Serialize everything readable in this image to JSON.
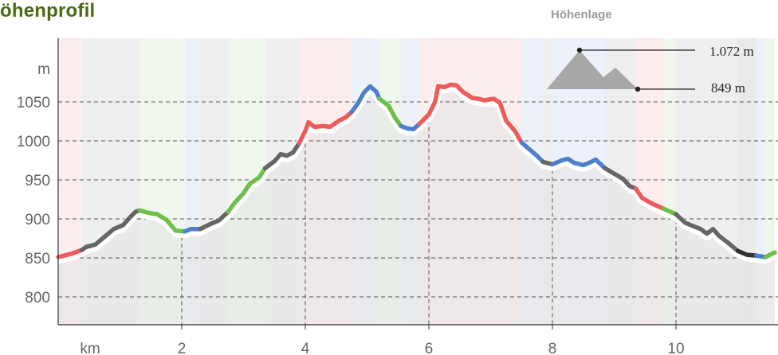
{
  "title": "öhenprofil",
  "legend": {
    "title": "Höhenlage",
    "max_label": "1.072 m",
    "min_label": "849 m",
    "icon": "mountain-icon"
  },
  "chart_data": {
    "type": "area",
    "xlabel": "km",
    "ylabel": "m",
    "x_unit": "km",
    "y_unit": "m",
    "xlim": [
      0,
      11.6
    ],
    "ylim": [
      770,
      1105
    ],
    "yticks": [
      800,
      850,
      900,
      950,
      1000,
      1050
    ],
    "xticks": [
      2,
      4,
      6,
      8,
      10
    ],
    "grid": "horizontal-dashed",
    "max_elevation": 1072,
    "min_elevation": 849,
    "points": [
      [
        0.0,
        851
      ],
      [
        0.2,
        855
      ],
      [
        0.38,
        860
      ],
      [
        0.45,
        864
      ],
      [
        0.6,
        867
      ],
      [
        0.75,
        877
      ],
      [
        0.9,
        887
      ],
      [
        1.05,
        892
      ],
      [
        1.15,
        901
      ],
      [
        1.25,
        909
      ],
      [
        1.32,
        911
      ],
      [
        1.45,
        908
      ],
      [
        1.6,
        906
      ],
      [
        1.75,
        899
      ],
      [
        1.9,
        885
      ],
      [
        2.05,
        884
      ],
      [
        2.15,
        887
      ],
      [
        2.3,
        887
      ],
      [
        2.45,
        893
      ],
      [
        2.6,
        898
      ],
      [
        2.75,
        909
      ],
      [
        2.85,
        920
      ],
      [
        3.0,
        933
      ],
      [
        3.1,
        945
      ],
      [
        3.25,
        953
      ],
      [
        3.35,
        965
      ],
      [
        3.5,
        974
      ],
      [
        3.6,
        983
      ],
      [
        3.7,
        981
      ],
      [
        3.8,
        985
      ],
      [
        3.9,
        997
      ],
      [
        4.0,
        1013
      ],
      [
        4.05,
        1024
      ],
      [
        4.15,
        1018
      ],
      [
        4.3,
        1019
      ],
      [
        4.4,
        1018
      ],
      [
        4.55,
        1026
      ],
      [
        4.65,
        1030
      ],
      [
        4.75,
        1037
      ],
      [
        4.85,
        1048
      ],
      [
        4.95,
        1062
      ],
      [
        5.05,
        1070
      ],
      [
        5.15,
        1063
      ],
      [
        5.2,
        1054
      ],
      [
        5.35,
        1045
      ],
      [
        5.45,
        1030
      ],
      [
        5.55,
        1019
      ],
      [
        5.65,
        1016
      ],
      [
        5.75,
        1015
      ],
      [
        5.85,
        1022
      ],
      [
        6.0,
        1034
      ],
      [
        6.1,
        1050
      ],
      [
        6.15,
        1070
      ],
      [
        6.25,
        1069
      ],
      [
        6.35,
        1072
      ],
      [
        6.45,
        1071
      ],
      [
        6.55,
        1063
      ],
      [
        6.7,
        1055
      ],
      [
        6.8,
        1054
      ],
      [
        6.9,
        1052
      ],
      [
        7.05,
        1054
      ],
      [
        7.15,
        1049
      ],
      [
        7.25,
        1026
      ],
      [
        7.4,
        1012
      ],
      [
        7.5,
        998
      ],
      [
        7.6,
        991
      ],
      [
        7.75,
        981
      ],
      [
        7.85,
        973
      ],
      [
        8.0,
        970
      ],
      [
        8.15,
        975
      ],
      [
        8.25,
        977
      ],
      [
        8.35,
        972
      ],
      [
        8.5,
        969
      ],
      [
        8.6,
        972
      ],
      [
        8.7,
        976
      ],
      [
        8.85,
        965
      ],
      [
        9.0,
        958
      ],
      [
        9.15,
        951
      ],
      [
        9.25,
        942
      ],
      [
        9.35,
        939
      ],
      [
        9.45,
        927
      ],
      [
        9.6,
        920
      ],
      [
        9.8,
        913
      ],
      [
        10.0,
        906
      ],
      [
        10.15,
        895
      ],
      [
        10.3,
        890
      ],
      [
        10.4,
        887
      ],
      [
        10.5,
        881
      ],
      [
        10.6,
        887
      ],
      [
        10.7,
        878
      ],
      [
        10.85,
        869
      ],
      [
        11.0,
        859
      ],
      [
        11.15,
        854
      ],
      [
        11.3,
        853
      ],
      [
        11.45,
        851
      ],
      [
        11.6,
        857
      ]
    ],
    "segments": [
      {
        "from": 0.0,
        "to": 0.38,
        "color": "#ee5b5b"
      },
      {
        "from": 0.38,
        "to": 1.32,
        "color": "#666666"
      },
      {
        "from": 1.32,
        "to": 2.05,
        "color": "#6fbf4a"
      },
      {
        "from": 2.05,
        "to": 2.3,
        "color": "#4f7fca"
      },
      {
        "from": 2.3,
        "to": 2.75,
        "color": "#666666"
      },
      {
        "from": 2.75,
        "to": 3.35,
        "color": "#6fbf4a"
      },
      {
        "from": 3.35,
        "to": 3.9,
        "color": "#666666"
      },
      {
        "from": 3.9,
        "to": 4.75,
        "color": "#ee5b5b"
      },
      {
        "from": 4.75,
        "to": 5.2,
        "color": "#4f7fca"
      },
      {
        "from": 5.2,
        "to": 5.55,
        "color": "#6fbf4a"
      },
      {
        "from": 5.55,
        "to": 5.85,
        "color": "#4f7fca"
      },
      {
        "from": 5.85,
        "to": 7.5,
        "color": "#ee5b5b"
      },
      {
        "from": 7.5,
        "to": 7.85,
        "color": "#4f7fca"
      },
      {
        "from": 7.85,
        "to": 8.0,
        "color": "#666666"
      },
      {
        "from": 8.0,
        "to": 8.85,
        "color": "#4f7fca"
      },
      {
        "from": 8.85,
        "to": 9.35,
        "color": "#666666"
      },
      {
        "from": 9.35,
        "to": 9.8,
        "color": "#ee5b5b"
      },
      {
        "from": 9.8,
        "to": 10.0,
        "color": "#6fbf4a"
      },
      {
        "from": 10.0,
        "to": 11.0,
        "color": "#666666"
      },
      {
        "from": 11.0,
        "to": 11.3,
        "color": "#333333"
      },
      {
        "from": 11.3,
        "to": 11.45,
        "color": "#4f7fca"
      },
      {
        "from": 11.45,
        "to": 11.6,
        "color": "#6fbf4a"
      }
    ]
  }
}
